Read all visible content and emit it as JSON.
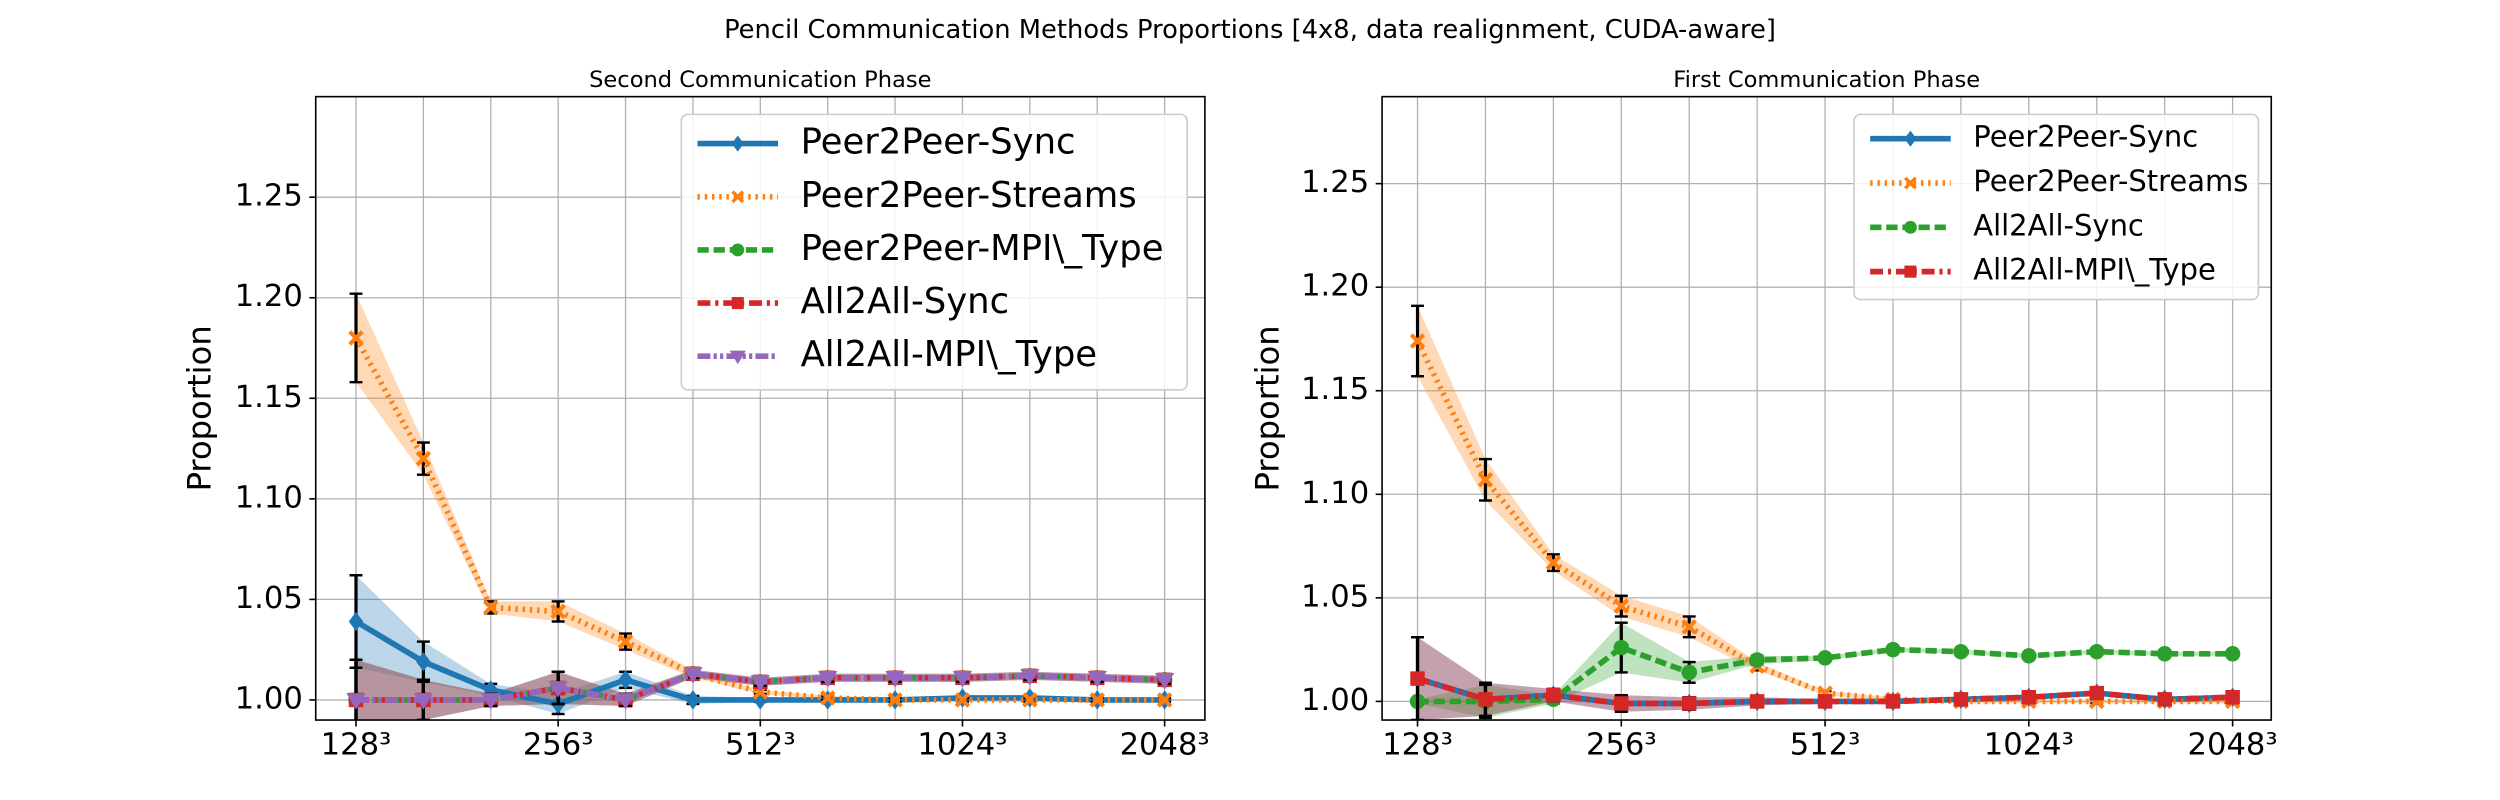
{
  "title": "Pencil Communication Methods Proportions [4x8, data realignment, CUDA-aware]",
  "chart_data": [
    {
      "type": "line",
      "title": "Second Communication Phase",
      "ylabel": "Proportion",
      "categories": [
        "128³",
        null,
        null,
        "256³",
        null,
        null,
        "512³",
        null,
        null,
        "1024³",
        null,
        null,
        "2048³"
      ],
      "ylim": [
        0.99,
        1.3
      ],
      "yticks": [
        {
          "value": 1.0,
          "label": "1.00"
        },
        1.05,
        {
          "value": 1.1,
          "label": "1.10"
        },
        1.15,
        {
          "value": 1.2,
          "label": "1.20"
        },
        1.25
      ],
      "grid": true,
      "legend": "upper right",
      "series": [
        {
          "name": "Peer2Peer-Sync",
          "color": "#1f77b4",
          "linestyle": "solid",
          "marker": "diamond",
          "values": [
            1.039,
            1.019,
            1.005,
            0.998,
            1.01,
            1.0,
            1.0,
            1.0,
            1.0,
            1.001,
            1.001,
            1.0,
            1.0
          ],
          "errors": [
            0.023,
            0.01,
            0.003,
            0.005,
            0.004,
            0.002,
            0.001,
            0.001,
            0.001,
            0.001,
            0.001,
            0.001,
            0.001
          ]
        },
        {
          "name": "Peer2Peer-Streams",
          "color": "#ff7f0e",
          "linestyle": "dotted",
          "marker": "x",
          "values": [
            1.18,
            1.12,
            1.046,
            1.044,
            1.029,
            1.013,
            1.004,
            1.001,
            1.0,
            1.0,
            1.0,
            1.0,
            1.0
          ],
          "errors": [
            0.022,
            0.008,
            0.003,
            0.005,
            0.004,
            0.002,
            0.001,
            0.001,
            0.001,
            0.001,
            0.001,
            0.001,
            0.001
          ]
        },
        {
          "name": "Peer2Peer-MPI\\_Type",
          "color": "#2ca02c",
          "linestyle": "dashed",
          "marker": "circle",
          "values": [
            1.0,
            1.0,
            1.0,
            1.006,
            1.0,
            1.013,
            1.009,
            1.011,
            1.011,
            1.011,
            1.012,
            1.011,
            1.01
          ],
          "errors": [
            0.02,
            0.01,
            0.003,
            0.008,
            0.003,
            0.002,
            0.002,
            0.002,
            0.002,
            0.002,
            0.002,
            0.002,
            0.002
          ]
        },
        {
          "name": "All2All-Sync",
          "color": "#d62728",
          "linestyle": "dashdot",
          "marker": "square",
          "values": [
            1.0,
            1.0,
            1.0,
            1.006,
            1.0,
            1.013,
            1.009,
            1.011,
            1.011,
            1.011,
            1.012,
            1.011,
            1.01
          ],
          "errors": [
            0.02,
            0.01,
            0.003,
            0.008,
            0.003,
            0.002,
            0.002,
            0.002,
            0.002,
            0.002,
            0.002,
            0.002,
            0.002
          ]
        },
        {
          "name": "All2All-MPI\\_Type",
          "color": "#9467bd",
          "linestyle": "dashdotdot",
          "marker": "triangle",
          "values": [
            1.0,
            1.0,
            1.0,
            1.006,
            1.0,
            1.013,
            1.009,
            1.011,
            1.011,
            1.011,
            1.012,
            1.011,
            1.01
          ],
          "errors": [
            0.02,
            0.01,
            0.003,
            0.008,
            0.003,
            0.002,
            0.002,
            0.002,
            0.002,
            0.002,
            0.002,
            0.002,
            0.002
          ]
        }
      ]
    },
    {
      "type": "line",
      "title": "First Communication Phase",
      "ylabel": "Proportion",
      "categories": [
        "128³",
        null,
        null,
        "256³",
        null,
        null,
        "512³",
        null,
        null,
        "1024³",
        null,
        null,
        "2048³"
      ],
      "ylim": [
        0.991,
        1.292
      ],
      "yticks": [
        {
          "value": 1.0,
          "label": "1.00"
        },
        1.05,
        {
          "value": 1.1,
          "label": "1.10"
        },
        1.15,
        {
          "value": 1.2,
          "label": "1.20"
        },
        1.25
      ],
      "grid": true,
      "legend": "upper right",
      "series": [
        {
          "name": "Peer2Peer-Sync",
          "color": "#1f77b4",
          "linestyle": "solid",
          "marker": "diamond",
          "values": [
            1.011,
            1.001,
            1.003,
            0.999,
            0.999,
            1.0,
            1.0,
            1.0,
            1.001,
            1.002,
            1.004,
            1.001,
            1.002
          ],
          "errors": [
            0.02,
            0.008,
            0.003,
            0.004,
            0.003,
            0.002,
            0.001,
            0.001,
            0.001,
            0.001,
            0.001,
            0.001,
            0.001
          ]
        },
        {
          "name": "Peer2Peer-Streams",
          "color": "#ff7f0e",
          "linestyle": "dotted",
          "marker": "x",
          "values": [
            1.174,
            1.107,
            1.067,
            1.046,
            1.036,
            1.017,
            1.004,
            1.001,
            1.0,
            1.0,
            1.0,
            1.0,
            1.0
          ],
          "errors": [
            0.017,
            0.01,
            0.004,
            0.005,
            0.005,
            0.002,
            0.001,
            0.001,
            0.001,
            0.001,
            0.001,
            0.001,
            0.001
          ]
        },
        {
          "name": "All2All-Sync",
          "color": "#2ca02c",
          "linestyle": "dashed",
          "marker": "circle",
          "values": [
            1.0,
            1.0,
            1.001,
            1.026,
            1.014,
            1.02,
            1.021,
            1.025,
            1.024,
            1.022,
            1.024,
            1.023,
            1.023
          ],
          "errors": [
            0.001,
            0.008,
            0.002,
            0.012,
            0.005,
            0.002,
            0.001,
            0.001,
            0.001,
            0.001,
            0.001,
            0.001,
            0.001
          ]
        },
        {
          "name": "All2All-MPI\\_Type",
          "color": "#d62728",
          "linestyle": "dashdot",
          "marker": "square",
          "values": [
            1.011,
            1.001,
            1.003,
            0.999,
            0.999,
            1.0,
            1.0,
            1.0,
            1.001,
            1.002,
            1.004,
            1.001,
            1.002
          ],
          "errors": [
            0.02,
            0.008,
            0.003,
            0.004,
            0.003,
            0.002,
            0.001,
            0.001,
            0.001,
            0.001,
            0.001,
            0.001,
            0.001
          ]
        }
      ]
    }
  ]
}
